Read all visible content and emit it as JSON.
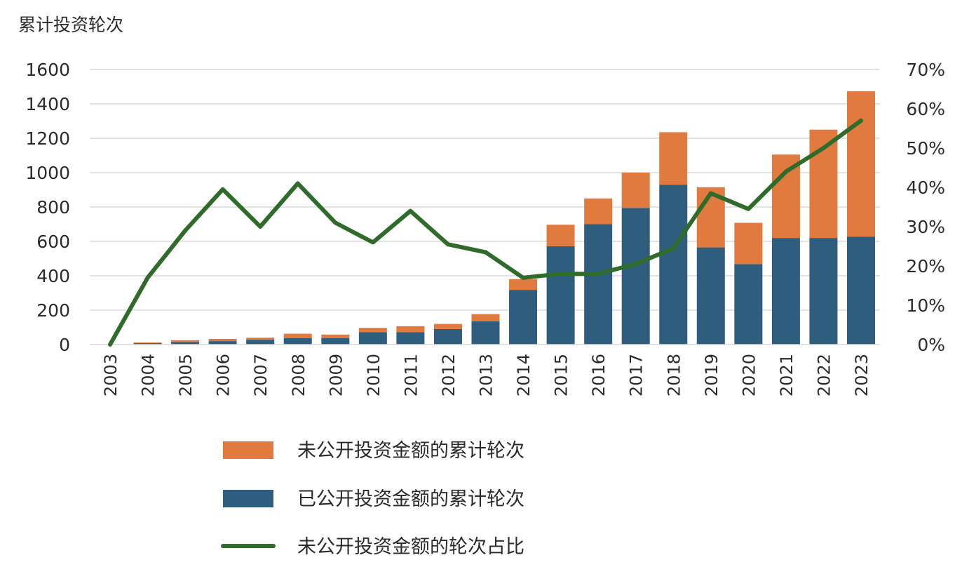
{
  "chart_data": {
    "type": "bar",
    "stacked": true,
    "ylabel": "累计投资轮次",
    "categories": [
      "2003",
      "2004",
      "2005",
      "2006",
      "2007",
      "2008",
      "2009",
      "2010",
      "2011",
      "2012",
      "2013",
      "2014",
      "2015",
      "2016",
      "2017",
      "2018",
      "2019",
      "2020",
      "2021",
      "2022",
      "2023"
    ],
    "series": [
      {
        "name": "已公开投资金额的累计轮次",
        "kind": "bar",
        "color": "#2e5d7d",
        "values": [
          0,
          8,
          15,
          20,
          28,
          38,
          38,
          72,
          72,
          90,
          135,
          318,
          572,
          700,
          795,
          930,
          565,
          468,
          620,
          620,
          628
        ]
      },
      {
        "name": "未公开投资金额的累计轮次",
        "kind": "bar",
        "color": "#e07a3f",
        "values": [
          0,
          4,
          10,
          13,
          12,
          25,
          20,
          25,
          35,
          30,
          42,
          62,
          125,
          150,
          205,
          305,
          350,
          240,
          485,
          630,
          845
        ]
      },
      {
        "name": "未公开投资金额的轮次占比",
        "kind": "line",
        "axis": "right",
        "color": "#2f6b2a",
        "values": [
          0,
          17,
          29,
          39.5,
          30,
          41,
          31,
          26,
          34,
          25.5,
          23.5,
          17,
          18,
          18,
          20.5,
          24.5,
          38.5,
          34.5,
          44,
          50,
          57
        ]
      }
    ],
    "y_left": {
      "ylim": [
        0,
        1600
      ],
      "ticks": [
        "0",
        "200",
        "400",
        "600",
        "800",
        "1000",
        "1200",
        "1400",
        "1600"
      ]
    },
    "y_right": {
      "ylim": [
        0,
        70
      ],
      "ticks": [
        "0%",
        "10%",
        "20%",
        "30%",
        "40%",
        "50%",
        "60%",
        "70%"
      ]
    },
    "grid": true,
    "legend_position": "bottom"
  }
}
